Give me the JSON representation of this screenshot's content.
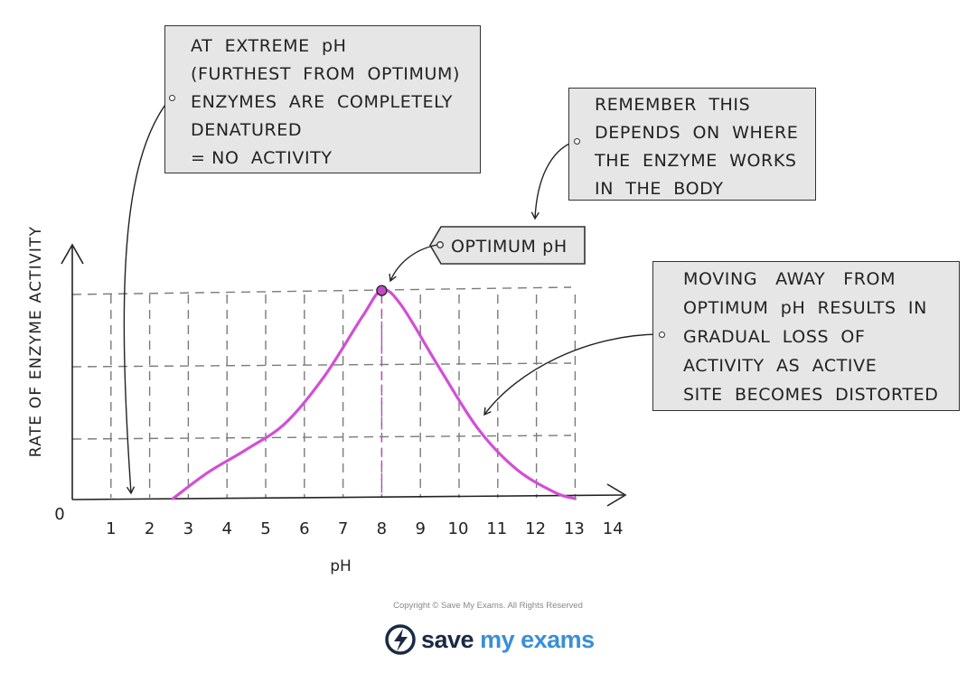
{
  "chart_data": {
    "type": "line",
    "x": [
      2.6,
      3.5,
      4.5,
      5.5,
      6.5,
      7.5,
      8.0,
      8.5,
      9.5,
      10.5,
      11.5,
      12.5,
      13.0
    ],
    "values": [
      0,
      0.09,
      0.17,
      0.26,
      0.42,
      0.63,
      0.72,
      0.67,
      0.45,
      0.24,
      0.1,
      0.02,
      0
    ],
    "x_ticks": [
      "0",
      "1",
      "2",
      "3",
      "4",
      "5",
      "6",
      "7",
      "8",
      "9",
      "10",
      "11",
      "12",
      "13",
      "14"
    ],
    "xlabel": "pH",
    "ylabel": "RATE OF ENZYME ACTIVITY",
    "xlim": [
      0,
      14
    ],
    "optimum_x": 8,
    "grid": true,
    "curve_color": "#d24fd6"
  },
  "annotations": {
    "extreme": [
      "AT  EXTREME  pH",
      "(FURTHEST  FROM  OPTIMUM)",
      "ENZYMES  ARE  COMPLETELY",
      "DENATURED",
      "= NO  ACTIVITY"
    ],
    "remember": [
      "REMEMBER  THIS",
      "DEPENDS  ON  WHERE",
      "THE  ENZYME  WORKS",
      "IN  THE  BODY"
    ],
    "optimum": "OPTIMUM pH",
    "moving": [
      "MOVING   AWAY   FROM",
      "OPTIMUM  pH  RESULTS  IN",
      "GRADUAL  LOSS  OF",
      "ACTIVITY  AS  ACTIVE",
      "SITE  BECOMES  DISTORTED"
    ]
  },
  "footer": {
    "copyright": "Copyright © Save My Exams. All Rights Reserved",
    "logo": "save my exams",
    "logo_icon": "lightning-bolt-icon"
  }
}
